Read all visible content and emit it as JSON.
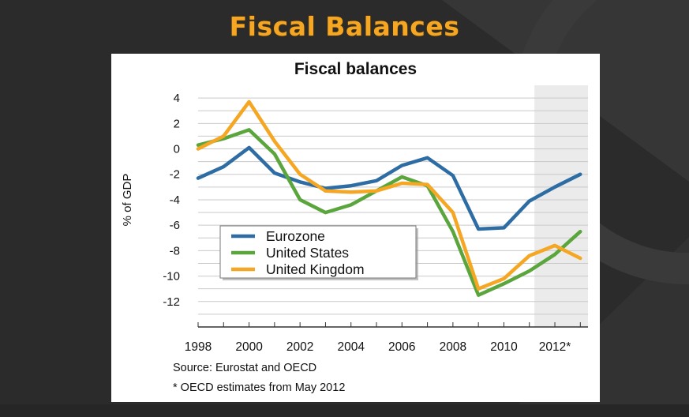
{
  "slide": {
    "title": "Fiscal Balances",
    "title_color": "#f5a623",
    "background_color": "#2b2b2b"
  },
  "chart_data": {
    "type": "line",
    "title": "Fiscal balances",
    "xlabel": "",
    "ylabel": "% of GDP",
    "x": [
      1998,
      1999,
      2000,
      2001,
      2002,
      2003,
      2004,
      2005,
      2006,
      2007,
      2008,
      2009,
      2010,
      2011,
      2012,
      2013
    ],
    "xticks": [
      1998,
      2000,
      2002,
      2004,
      2006,
      2008,
      2010,
      2012
    ],
    "xtick_labels": [
      "1998",
      "2000",
      "2002",
      "2004",
      "2006",
      "2008",
      "2010",
      "2012*"
    ],
    "yticks": [
      4,
      2,
      0,
      -2,
      -4,
      -6,
      -8,
      -10,
      -12
    ],
    "ylim": [
      -14,
      5
    ],
    "xlim": [
      1998,
      2013.3
    ],
    "grid": true,
    "shaded_region": {
      "from": 2011.2,
      "to": 2013.3,
      "label": "OECD estimates",
      "color": "#ebebeb"
    },
    "legend_position": "lower-left",
    "series": [
      {
        "name": "Eurozone",
        "color": "#2e6da4",
        "values": [
          -2.3,
          -1.4,
          0.1,
          -1.9,
          -2.6,
          -3.1,
          -2.9,
          -2.5,
          -1.3,
          -0.7,
          -2.1,
          -6.3,
          -6.2,
          -4.1,
          -3.0,
          -2.0
        ]
      },
      {
        "name": "United States",
        "color": "#5aa63c",
        "values": [
          0.3,
          0.8,
          1.5,
          -0.4,
          -4.0,
          -5.0,
          -4.4,
          -3.3,
          -2.2,
          -2.9,
          -6.5,
          -11.5,
          -10.6,
          -9.6,
          -8.3,
          -6.5
        ]
      },
      {
        "name": "United Kingdom",
        "color": "#f5a623",
        "values": [
          0.0,
          1.0,
          3.7,
          0.6,
          -2.0,
          -3.3,
          -3.4,
          -3.3,
          -2.7,
          -2.8,
          -5.0,
          -11.0,
          -10.2,
          -8.4,
          -7.6,
          -8.6
        ]
      }
    ]
  },
  "notes": {
    "source": "Source: Eurostat and OECD",
    "estimates": "* OECD estimates from May 2012"
  }
}
